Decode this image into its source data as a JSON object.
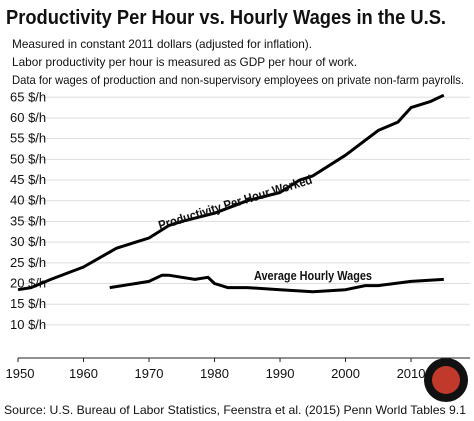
{
  "chart_data": {
    "type": "line",
    "title": "Productivity Per Hour vs. Hourly Wages in the U.S.",
    "subtitle": [
      "Measured in constant 2011 dollars (adjusted for inflation).",
      "Labor productivity per hour is measured as GDP per hour of work.",
      "Data for wages of production and non-supervisory employees on private non-farm payrolls."
    ],
    "source": "Source: U.S. Bureau of Labor Statistics, Feenstra et al. (2015) Penn World Tables 9.1",
    "xlim": [
      1950,
      2019
    ],
    "xticks": [
      1950,
      1960,
      1970,
      1980,
      1990,
      2000,
      2010
    ],
    "ylim": [
      2,
      67
    ],
    "yticks": [
      {
        "value": 10,
        "label": "10 $/h"
      },
      {
        "value": 15,
        "label": "15 $/h"
      },
      {
        "value": 20,
        "label": "20 $/h"
      },
      {
        "value": 25,
        "label": "25 $/h"
      },
      {
        "value": 30,
        "label": "30 $/h"
      },
      {
        "value": 35,
        "label": "35 $/h"
      },
      {
        "value": 40,
        "label": "40 $/h"
      },
      {
        "value": 45,
        "label": "45 $/h"
      },
      {
        "value": 50,
        "label": "50 $/h"
      },
      {
        "value": 55,
        "label": "55 $/h"
      },
      {
        "value": 60,
        "label": "60 $/h"
      },
      {
        "value": 65,
        "label": "65 $/h"
      }
    ],
    "grid": true,
    "series": [
      {
        "name": "Productivity Per Hour Worked",
        "color": "#000000",
        "x": [
          1950,
          1952,
          1955,
          1960,
          1965,
          1968,
          1970,
          1973,
          1975,
          1980,
          1985,
          1990,
          1993,
          1995,
          2000,
          2005,
          2008,
          2010,
          2013,
          2015
        ],
        "values": [
          18.5,
          19,
          21,
          24,
          28.5,
          30,
          31,
          34,
          35,
          37,
          40,
          42,
          45,
          46,
          51,
          57,
          59,
          62.5,
          64,
          65.5
        ]
      },
      {
        "name": "Average Hourly Wages",
        "color": "#000000",
        "x": [
          1964,
          1968,
          1970,
          1972,
          1973,
          1975,
          1977,
          1979,
          1980,
          1982,
          1985,
          1990,
          1995,
          2000,
          2003,
          2005,
          2010,
          2015
        ],
        "values": [
          19,
          20,
          20.5,
          22,
          22,
          21.5,
          21,
          21.5,
          20,
          19,
          19,
          18.5,
          18,
          18.5,
          19.5,
          19.5,
          20.5,
          21
        ]
      }
    ]
  }
}
